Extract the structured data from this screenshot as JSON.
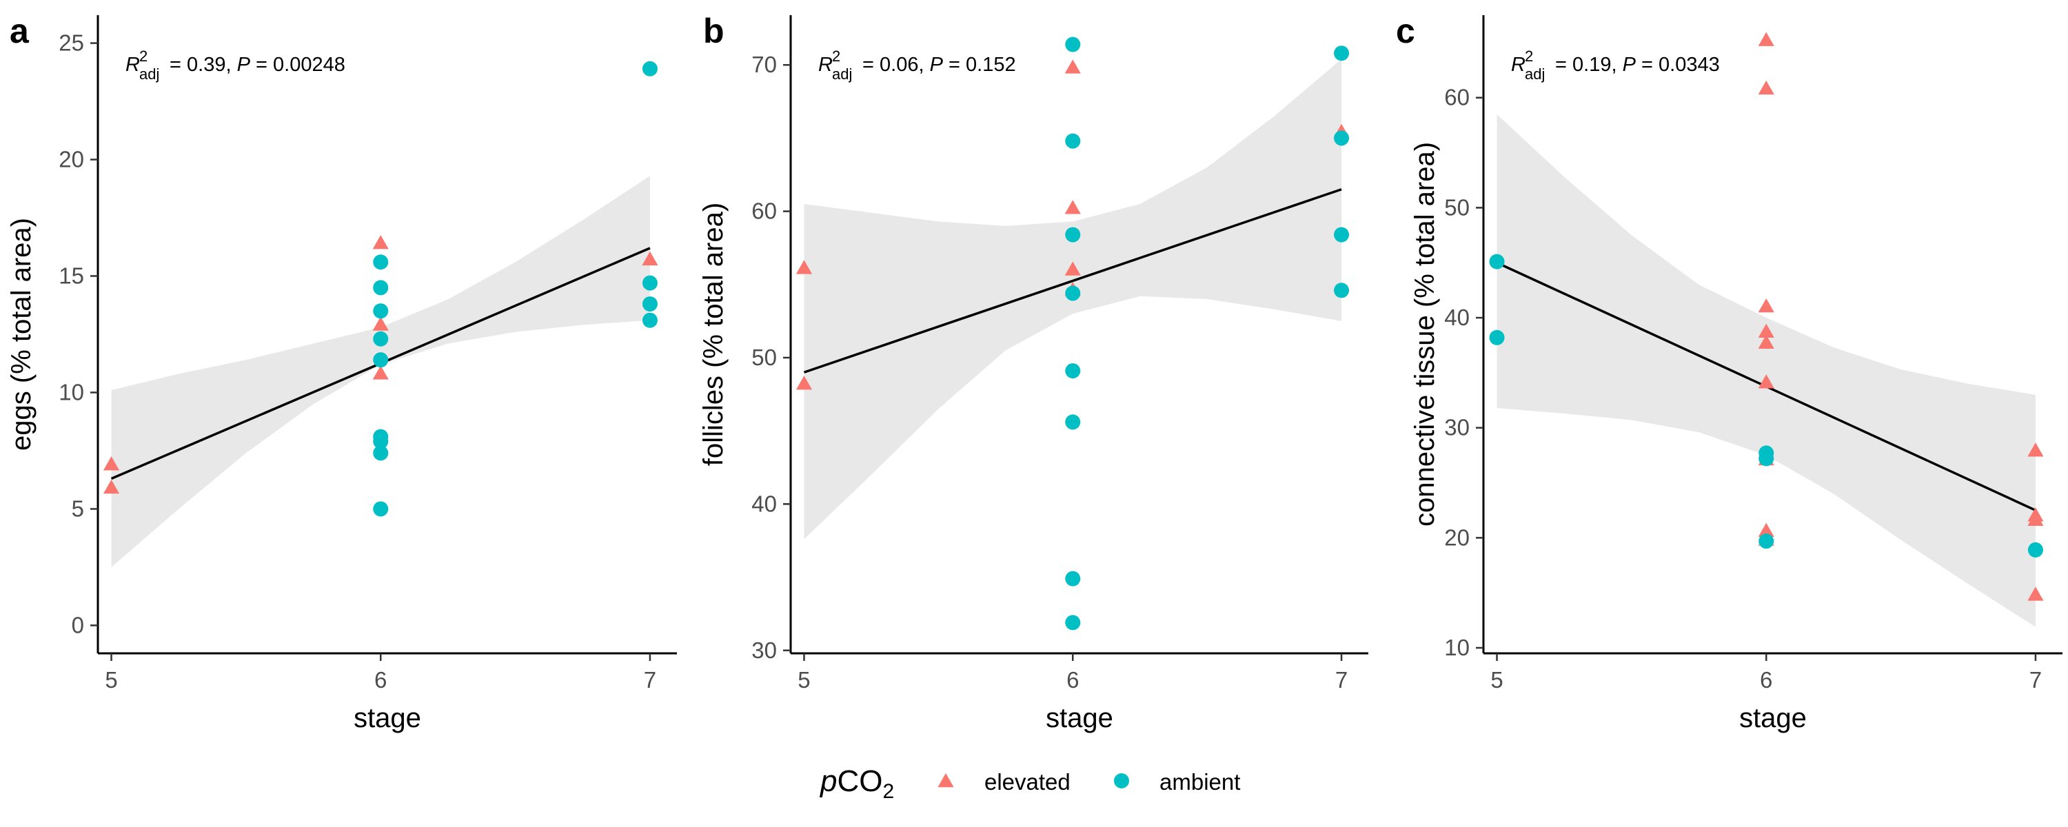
{
  "colors": {
    "elevated": "#F8766D",
    "ambient": "#00BFC4",
    "band": "#d9d9d9",
    "fit": "#000000"
  },
  "legend": {
    "title_italic": "p",
    "title_main": "CO",
    "title_sub": "2",
    "entries": [
      {
        "key": "elevated",
        "label": "elevated",
        "shape": "triangle"
      },
      {
        "key": "ambient",
        "label": "ambient",
        "shape": "circle"
      }
    ]
  },
  "chart_data": [
    {
      "type": "scatter",
      "letter": "a",
      "xlabel": "stage",
      "ylabel": "eggs (% total area)",
      "xlim": [
        4.95,
        7.1
      ],
      "ylim": [
        -1.2,
        26.2
      ],
      "xticks": [
        5,
        6,
        7
      ],
      "yticks": [
        0,
        5,
        10,
        15,
        20,
        25
      ],
      "stats": {
        "r_label": "R",
        "r_sup": "2",
        "r_sub": "adj",
        "r_value": " = 0.39, ",
        "p_label": "P",
        "p_value": " = 0.00248"
      },
      "fit": {
        "x": [
          5,
          7
        ],
        "y": [
          6.3,
          16.2
        ]
      },
      "band": {
        "x": [
          5,
          5.25,
          5.5,
          5.75,
          6,
          6.25,
          6.5,
          6.75,
          7
        ],
        "lower": [
          2.5,
          5.0,
          7.4,
          9.5,
          11.2,
          12.1,
          12.6,
          12.9,
          13.1
        ],
        "upper": [
          10.1,
          10.8,
          11.4,
          12.1,
          12.8,
          14.0,
          15.6,
          17.4,
          19.3
        ]
      },
      "series": [
        {
          "name": "elevated",
          "points": [
            [
              5,
              6.9
            ],
            [
              5,
              5.9
            ],
            [
              6,
              16.4
            ],
            [
              6,
              12.9
            ],
            [
              6,
              10.8
            ],
            [
              7,
              15.7
            ]
          ]
        },
        {
          "name": "ambient",
          "points": [
            [
              6,
              15.6
            ],
            [
              6,
              14.5
            ],
            [
              6,
              13.5
            ],
            [
              6,
              12.3
            ],
            [
              6,
              11.4
            ],
            [
              6,
              8.1
            ],
            [
              6,
              7.9
            ],
            [
              6,
              7.4
            ],
            [
              6,
              5.0
            ],
            [
              7,
              23.9
            ],
            [
              7,
              14.7
            ],
            [
              7,
              13.8
            ],
            [
              7,
              13.1
            ]
          ]
        }
      ]
    },
    {
      "type": "scatter",
      "letter": "b",
      "xlabel": "stage",
      "ylabel": "follicles (% total area)",
      "xlim": [
        4.95,
        7.1
      ],
      "ylim": [
        29.8,
        73.4
      ],
      "xticks": [
        5,
        6,
        7
      ],
      "yticks": [
        30,
        40,
        50,
        60,
        70
      ],
      "stats": {
        "r_label": "R",
        "r_sup": "2",
        "r_sub": "adj",
        "r_value": " = 0.06, ",
        "p_label": "P",
        "p_value": " = 0.152"
      },
      "fit": {
        "x": [
          5,
          7
        ],
        "y": [
          49.0,
          61.5
        ]
      },
      "band": {
        "x": [
          5,
          5.25,
          5.5,
          5.75,
          6,
          6.25,
          6.5,
          6.75,
          7
        ],
        "lower": [
          37.6,
          42.0,
          46.5,
          50.5,
          53.0,
          54.2,
          54.0,
          53.3,
          52.5
        ],
        "upper": [
          60.5,
          59.9,
          59.3,
          59.0,
          59.3,
          60.5,
          63.0,
          66.5,
          70.4
        ]
      },
      "series": [
        {
          "name": "elevated",
          "points": [
            [
              5,
              56.1
            ],
            [
              5,
              48.2
            ],
            [
              6,
              69.8
            ],
            [
              6,
              60.2
            ],
            [
              6,
              56.0
            ],
            [
              6,
              54.6
            ],
            [
              7,
              65.4
            ]
          ]
        },
        {
          "name": "ambient",
          "points": [
            [
              6,
              71.4
            ],
            [
              6,
              64.8
            ],
            [
              6,
              58.4
            ],
            [
              6,
              54.4
            ],
            [
              6,
              49.1
            ],
            [
              6,
              45.6
            ],
            [
              6,
              34.9
            ],
            [
              6,
              31.9
            ],
            [
              7,
              70.8
            ],
            [
              7,
              65.0
            ],
            [
              7,
              58.4
            ],
            [
              7,
              54.6
            ]
          ]
        }
      ]
    },
    {
      "type": "scatter",
      "letter": "c",
      "xlabel": "stage",
      "ylabel": "connective tissue (% total area)",
      "xlim": [
        4.95,
        7.1
      ],
      "ylim": [
        9.5,
        67.5
      ],
      "xticks": [
        5,
        6,
        7
      ],
      "yticks": [
        10,
        20,
        30,
        40,
        50,
        60
      ],
      "stats": {
        "r_label": "R",
        "r_sup": "2",
        "r_sub": "adj",
        "r_value": " = 0.19, ",
        "p_label": "P",
        "p_value": " = 0.0343"
      },
      "fit": {
        "x": [
          5,
          7
        ],
        "y": [
          45.0,
          22.5
        ]
      },
      "band": {
        "x": [
          5,
          5.25,
          5.5,
          5.75,
          6,
          6.25,
          6.5,
          6.75,
          7
        ],
        "lower": [
          31.8,
          31.3,
          30.7,
          29.6,
          27.5,
          24.0,
          19.8,
          15.8,
          11.9
        ],
        "upper": [
          58.5,
          52.8,
          47.5,
          43.0,
          40.0,
          37.3,
          35.3,
          34.0,
          33.0
        ]
      },
      "series": [
        {
          "name": "elevated",
          "points": [
            [
              6,
              65.2
            ],
            [
              6,
              60.8
            ],
            [
              6,
              41.0
            ],
            [
              6,
              38.7
            ],
            [
              6,
              37.7
            ],
            [
              6,
              34.1
            ],
            [
              6,
              27.1
            ],
            [
              6,
              20.6
            ],
            [
              6,
              19.8
            ],
            [
              7,
              27.9
            ],
            [
              7,
              22.0
            ],
            [
              7,
              21.6
            ],
            [
              7,
              14.8
            ]
          ]
        },
        {
          "name": "ambient",
          "points": [
            [
              5,
              45.1
            ],
            [
              5,
              38.2
            ],
            [
              6,
              27.7
            ],
            [
              6,
              27.2
            ],
            [
              6,
              19.7
            ],
            [
              7,
              18.9
            ]
          ]
        }
      ]
    }
  ]
}
